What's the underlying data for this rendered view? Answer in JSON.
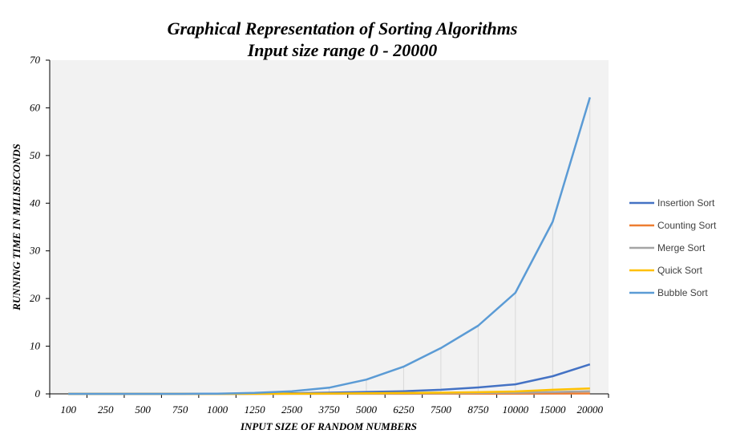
{
  "chart_data": {
    "type": "line",
    "title": "Graphical Representation of Sorting Algorithms",
    "subtitle": "Input size range 0 - 20000",
    "xlabel": "INPUT SIZE OF RANDOM NUMBERS",
    "ylabel": "RUNNING TIME IN MILISECONDS",
    "categories": [
      "100",
      "250",
      "500",
      "750",
      "1000",
      "1250",
      "2500",
      "3750",
      "5000",
      "6250",
      "7500",
      "8750",
      "10000",
      "15000",
      "20000"
    ],
    "ylim": [
      0,
      70
    ],
    "yticks": [
      0,
      10,
      20,
      30,
      40,
      50,
      60,
      70
    ],
    "grid": "vertical drop lines",
    "legend_position": "right",
    "series": [
      {
        "name": "Insertion Sort",
        "color": "#4472C4",
        "values": [
          0,
          0,
          0,
          0,
          0.02,
          0.05,
          0.12,
          0.25,
          0.4,
          0.55,
          0.85,
          1.35,
          2.0,
          3.7,
          6.2
        ]
      },
      {
        "name": "Counting Sort",
        "color": "#ED7D31",
        "values": [
          0,
          0,
          0,
          0,
          0,
          0,
          0.01,
          0.01,
          0.02,
          0.02,
          0.03,
          0.03,
          0.04,
          0.06,
          0.08
        ]
      },
      {
        "name": "Merge Sort",
        "color": "#A5A5A5",
        "values": [
          0,
          0,
          0,
          0,
          0,
          0.01,
          0.02,
          0.04,
          0.07,
          0.1,
          0.14,
          0.18,
          0.24,
          0.38,
          0.55
        ]
      },
      {
        "name": "Quick Sort",
        "color": "#FFC000",
        "values": [
          0,
          0,
          0,
          0,
          0,
          0.01,
          0.03,
          0.07,
          0.12,
          0.18,
          0.26,
          0.36,
          0.5,
          0.85,
          1.15
        ]
      },
      {
        "name": "Bubble Sort",
        "color": "#5B9BD5",
        "values": [
          0,
          0,
          0,
          0,
          0.05,
          0.2,
          0.55,
          1.3,
          3.0,
          5.7,
          9.6,
          14.3,
          21.2,
          36.1,
          62.2
        ]
      }
    ]
  }
}
